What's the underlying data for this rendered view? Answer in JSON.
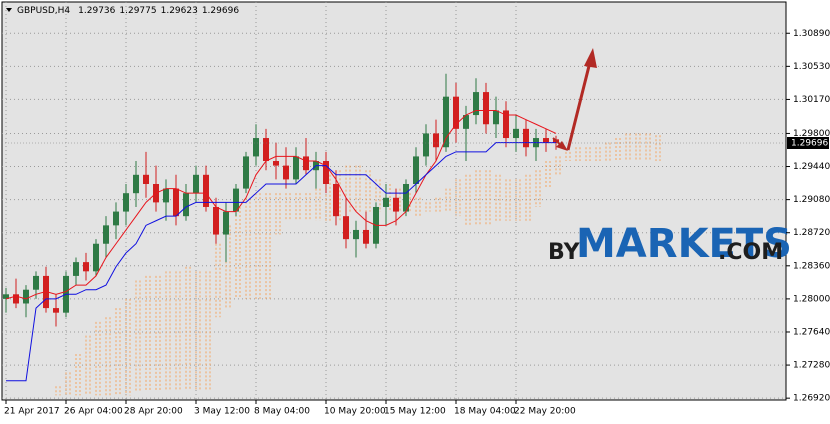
{
  "chart_data": {
    "type": "candlestick",
    "symbol": "GBPUSD,H4",
    "categories": [
      "21 Apr 2017",
      null,
      null,
      null,
      null,
      null,
      "26 Apr 04:00",
      null,
      null,
      null,
      null,
      null,
      "28 Apr 20:00",
      null,
      null,
      null,
      null,
      null,
      null,
      "3 May 12:00",
      null,
      null,
      null,
      null,
      null,
      "8 May 04:00",
      null,
      null,
      null,
      null,
      null,
      null,
      "10 May 20:00",
      null,
      null,
      null,
      null,
      null,
      "15 May 12:00",
      null,
      null,
      null,
      null,
      null,
      null,
      "18 May 04:00",
      null,
      null,
      null,
      null,
      null,
      "22 May 20:00",
      null,
      null,
      null,
      null,
      null,
      null,
      null,
      null,
      null,
      null,
      null,
      null,
      null,
      null
    ],
    "open": [
      1.28,
      1.2805,
      1.2795,
      1.281,
      1.2825,
      1.279,
      1.2785,
      1.2825,
      1.284,
      1.283,
      1.286,
      1.288,
      1.2895,
      1.2915,
      1.2935,
      1.2925,
      1.2905,
      1.292,
      1.289,
      1.2915,
      1.2935,
      1.29,
      1.287,
      1.2895,
      1.292,
      1.2955,
      1.2975,
      1.295,
      1.2945,
      1.293,
      1.2955,
      1.294,
      1.295,
      1.2925,
      1.289,
      1.2865,
      1.2875,
      1.286,
      1.29,
      1.291,
      1.2895,
      1.2925,
      1.2955,
      1.298,
      1.2965,
      1.302,
      1.2985,
      1.3,
      1.3025,
      1.299,
      1.3005,
      1.2975,
      1.2985,
      1.2965,
      1.2975,
      1.29736,
      null,
      null,
      null,
      null,
      null,
      null,
      null,
      null,
      null,
      null
    ],
    "high": [
      1.2812,
      1.2822,
      1.2815,
      1.283,
      1.2835,
      1.2805,
      1.283,
      1.2845,
      1.285,
      1.2865,
      1.289,
      1.2905,
      1.2925,
      1.295,
      1.296,
      1.2945,
      1.293,
      1.2935,
      1.2925,
      1.2945,
      1.2945,
      1.291,
      1.2905,
      1.2925,
      1.296,
      1.299,
      1.2985,
      1.297,
      1.2965,
      1.2965,
      1.2975,
      1.296,
      1.296,
      1.294,
      1.291,
      1.2885,
      1.2895,
      1.2905,
      1.2925,
      1.292,
      1.293,
      1.2965,
      1.299,
      1.2995,
      1.3045,
      1.3035,
      1.301,
      1.304,
      1.3035,
      1.302,
      1.3015,
      1.3,
      1.2995,
      1.2985,
      1.2985,
      1.29775,
      null,
      null,
      null,
      null,
      null,
      null,
      null,
      null,
      null,
      null
    ],
    "low": [
      1.2785,
      1.279,
      1.278,
      1.28,
      1.2785,
      1.277,
      1.278,
      1.2815,
      1.282,
      1.2825,
      1.2845,
      1.2865,
      1.288,
      1.29,
      1.291,
      1.2895,
      1.2885,
      1.288,
      1.2885,
      1.2905,
      1.2895,
      1.286,
      1.284,
      1.289,
      1.2915,
      1.2945,
      1.294,
      1.293,
      1.292,
      1.2925,
      1.2935,
      1.292,
      1.2915,
      1.288,
      1.2855,
      1.2845,
      1.2855,
      1.2855,
      1.288,
      1.288,
      1.289,
      1.2915,
      1.2945,
      1.295,
      1.296,
      1.297,
      1.295,
      1.299,
      1.298,
      1.2975,
      1.2965,
      1.296,
      1.2955,
      1.295,
      1.296,
      1.29623,
      null,
      null,
      null,
      null,
      null,
      null,
      null,
      null,
      null,
      null
    ],
    "close": [
      1.2805,
      1.2795,
      1.281,
      1.2825,
      1.279,
      1.2785,
      1.2825,
      1.284,
      1.283,
      1.286,
      1.288,
      1.2895,
      1.2915,
      1.2935,
      1.2925,
      1.2905,
      1.292,
      1.289,
      1.2915,
      1.2935,
      1.29,
      1.287,
      1.2895,
      1.292,
      1.2955,
      1.2975,
      1.295,
      1.2945,
      1.293,
      1.2955,
      1.294,
      1.295,
      1.2925,
      1.289,
      1.2865,
      1.2875,
      1.286,
      1.29,
      1.291,
      1.2895,
      1.2925,
      1.2955,
      1.298,
      1.2965,
      1.302,
      1.2985,
      1.3,
      1.3025,
      1.299,
      1.3005,
      1.2975,
      1.2985,
      1.2965,
      1.2975,
      1.297,
      1.29696,
      null,
      null,
      null,
      null,
      null,
      null,
      null,
      null,
      null,
      null
    ],
    "up_color": "#2f7a45",
    "down_color": "#d21f1f",
    "lines": [
      {
        "color": "#e8141c",
        "values": [
          1.28,
          1.2803,
          1.28,
          1.2805,
          1.2808,
          1.2805,
          1.2808,
          1.2815,
          1.2815,
          1.2825,
          1.2845,
          1.286,
          1.2875,
          1.289,
          1.2905,
          1.2915,
          1.292,
          1.292,
          1.2915,
          1.2915,
          1.2915,
          1.29,
          1.2895,
          1.2895,
          1.291,
          1.2935,
          1.295,
          1.2955,
          1.2955,
          1.2955,
          1.295,
          1.295,
          1.2945,
          1.293,
          1.291,
          1.2895,
          1.2885,
          1.288,
          1.288,
          1.2885,
          1.2895,
          1.2915,
          1.2935,
          1.295,
          1.2975,
          1.299,
          1.3,
          1.3005,
          1.3005,
          1.3005,
          1.3,
          1.3,
          1.2995,
          1.299,
          1.2985,
          1.298,
          null,
          null,
          null,
          null,
          null,
          null,
          null,
          null,
          null,
          null
        ]
      },
      {
        "color": "#1010e0",
        "values": [
          1.2711,
          1.2711,
          1.2711,
          1.279,
          1.28,
          1.28,
          1.2805,
          1.2805,
          1.281,
          1.281,
          1.2815,
          1.2835,
          1.285,
          1.286,
          1.288,
          1.2885,
          1.289,
          1.289,
          1.29,
          1.2905,
          1.2905,
          1.2905,
          1.2905,
          1.2905,
          1.2905,
          1.2915,
          1.2925,
          1.2925,
          1.2925,
          1.2925,
          1.2935,
          1.2945,
          1.2945,
          1.2935,
          1.2935,
          1.2935,
          1.2935,
          1.2925,
          1.2915,
          1.2915,
          1.2915,
          1.2925,
          1.2935,
          1.2945,
          1.2955,
          1.296,
          1.296,
          1.296,
          1.296,
          1.297,
          1.297,
          1.297,
          1.297,
          1.297,
          1.297,
          1.297,
          null,
          null,
          null,
          null,
          null,
          null,
          null,
          null,
          null,
          null
        ]
      }
    ],
    "cloud": {
      "color": "#f4a460",
      "span_a": [
        null,
        null,
        null,
        null,
        null,
        1.2705,
        1.272,
        1.274,
        1.276,
        1.2775,
        1.278,
        1.279,
        1.28,
        1.282,
        1.2825,
        1.2825,
        1.283,
        1.283,
        1.2835,
        1.283,
        1.283,
        1.286,
        1.288,
        1.29,
        1.291,
        1.2915,
        1.2915,
        1.2915,
        1.2915,
        1.2915,
        1.2915,
        1.292,
        1.2935,
        1.294,
        1.2945,
        1.2945,
        1.294,
        1.293,
        1.2925,
        1.292,
        1.2915,
        1.291,
        1.2905,
        1.291,
        1.292,
        1.293,
        1.2935,
        1.294,
        1.294,
        1.2935,
        1.293,
        1.293,
        1.2935,
        1.294,
        1.295,
        1.2955,
        1.296,
        1.2965,
        1.2965,
        1.2965,
        1.297,
        1.2975,
        1.298,
        1.298,
        1.298,
        1.2978
      ],
      "span_b": [
        null,
        null,
        null,
        null,
        null,
        1.2695,
        1.2695,
        1.2695,
        1.2695,
        1.2695,
        1.2695,
        1.2695,
        1.2695,
        1.27,
        1.27,
        1.27,
        1.27,
        1.27,
        1.27,
        1.27,
        1.27,
        1.278,
        1.279,
        1.28,
        1.28,
        1.28,
        1.28,
        1.287,
        1.2885,
        1.2885,
        1.2885,
        1.2885,
        1.2885,
        1.2885,
        1.2895,
        1.2895,
        1.2895,
        1.2895,
        1.2895,
        1.2895,
        1.2895,
        1.289,
        1.2895,
        1.2895,
        1.2895,
        1.289,
        1.288,
        1.288,
        1.288,
        1.2885,
        1.2885,
        1.2885,
        1.2885,
        1.29,
        1.292,
        1.2935,
        1.295,
        1.295,
        1.295,
        1.295,
        1.295,
        1.295,
        1.295,
        1.295,
        1.295,
        1.295
      ]
    },
    "last_price": 1.29696,
    "ylim": [
      1.269,
      1.3123
    ],
    "yticks": [
      {
        "value": 1.3089,
        "label": "1.30890"
      },
      {
        "value": 1.3053,
        "label": "1.30530"
      },
      {
        "value": 1.3017,
        "label": "1.30170"
      },
      {
        "value": 1.298,
        "label": "1.29800"
      },
      {
        "value": 1.2944,
        "label": "1.29440"
      },
      {
        "value": 1.2908,
        "label": "1.29080"
      },
      {
        "value": 1.2872,
        "label": "1.28720"
      },
      {
        "value": 1.2836,
        "label": "1.28360"
      },
      {
        "value": 1.28,
        "label": "1.28000"
      },
      {
        "value": 1.2764,
        "label": "1.27640"
      },
      {
        "value": 1.2728,
        "label": "1.27280"
      },
      {
        "value": 1.2692,
        "label": "1.26920"
      }
    ],
    "grid": true,
    "watermark": {
      "prefix": "BY",
      "brand": "MARKETS",
      "suffix": ".COM"
    }
  }
}
